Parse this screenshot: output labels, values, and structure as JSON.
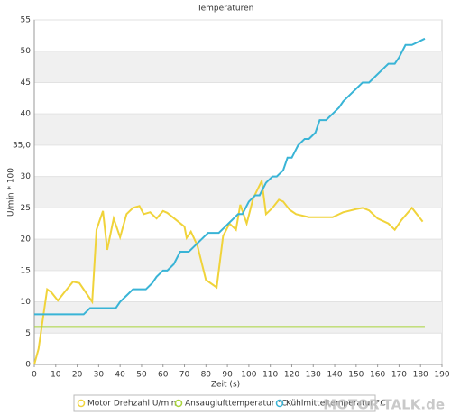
{
  "chart_data": {
    "type": "line",
    "title": "Temperaturen",
    "x_label": "Zeit (s)",
    "y_label": "U/min * 100",
    "xlim": [
      0,
      190
    ],
    "xticks": [
      0,
      10,
      20,
      30,
      40,
      50,
      60,
      70,
      80,
      90,
      100,
      110,
      120,
      130,
      140,
      150,
      160,
      170,
      180,
      190
    ],
    "ylim": [
      0,
      55
    ],
    "yticks": [
      0,
      5,
      10,
      15,
      20,
      25,
      30,
      {
        "value": 35,
        "label": "35,0"
      },
      40,
      45,
      50,
      55
    ],
    "grid": true,
    "legend": "bottom",
    "series": [
      {
        "name": "Motor Drehzahl U/min",
        "color": "#f0d33a",
        "x": [
          0,
          2,
          6,
          8,
          11,
          14,
          18,
          21,
          24,
          27,
          29,
          32,
          34,
          37,
          40,
          43,
          46,
          49,
          51,
          54,
          57,
          60,
          62,
          70,
          71,
          73,
          76,
          80,
          85,
          88,
          91,
          94,
          96,
          99,
          102,
          106,
          108,
          111,
          114,
          116,
          119,
          122,
          128,
          139,
          144,
          150,
          153,
          156,
          160,
          165,
          168,
          171,
          176,
          181
        ],
        "values": [
          0,
          2.5,
          12,
          11.5,
          10.2,
          11.5,
          13.2,
          13,
          11.5,
          10,
          21.5,
          24.5,
          18.3,
          23.3,
          20.3,
          24,
          25,
          25.3,
          24,
          24.3,
          23.3,
          24.5,
          24.2,
          22,
          20.2,
          21.2,
          19,
          13.5,
          12.3,
          20.5,
          22.5,
          21.5,
          25.5,
          22.5,
          26.5,
          29.3,
          24,
          25,
          26.3,
          26,
          24.7,
          24,
          23.5,
          23.5,
          24.3,
          24.8,
          25,
          24.6,
          23.3,
          22.5,
          21.5,
          23,
          25,
          22.8
        ]
      },
      {
        "name": "Ansauglufttemperatur °C",
        "color": "#a8d43a",
        "x": [
          0,
          182
        ],
        "values": [
          6,
          6
        ]
      },
      {
        "name": "Kühlmitteltemperatur °C",
        "color": "#39b4d6",
        "x": [
          0,
          23,
          26,
          38,
          40,
          43,
          46,
          52,
          55,
          57,
          60,
          62,
          65,
          68,
          72,
          75,
          78,
          81,
          86,
          89,
          92,
          95,
          97,
          100,
          103,
          105,
          108,
          111,
          113,
          116,
          118,
          120,
          123,
          126,
          128,
          131,
          133,
          136,
          139,
          142,
          144,
          147,
          150,
          153,
          156,
          159,
          162,
          165,
          168,
          170,
          173,
          176,
          182
        ],
        "values": [
          8,
          8,
          9,
          9,
          10,
          11,
          12,
          12,
          13,
          14,
          15,
          15,
          16,
          18,
          18,
          19,
          20,
          21,
          21,
          22,
          23,
          24,
          24,
          26,
          27,
          27,
          29,
          30,
          30,
          31,
          33,
          33,
          35,
          36,
          36,
          37,
          39,
          39,
          40,
          41,
          42,
          43,
          44,
          45,
          45,
          46,
          47,
          48,
          48,
          49,
          51,
          51,
          52
        ]
      }
    ],
    "watermark": "MOTOR-TALK.de"
  }
}
